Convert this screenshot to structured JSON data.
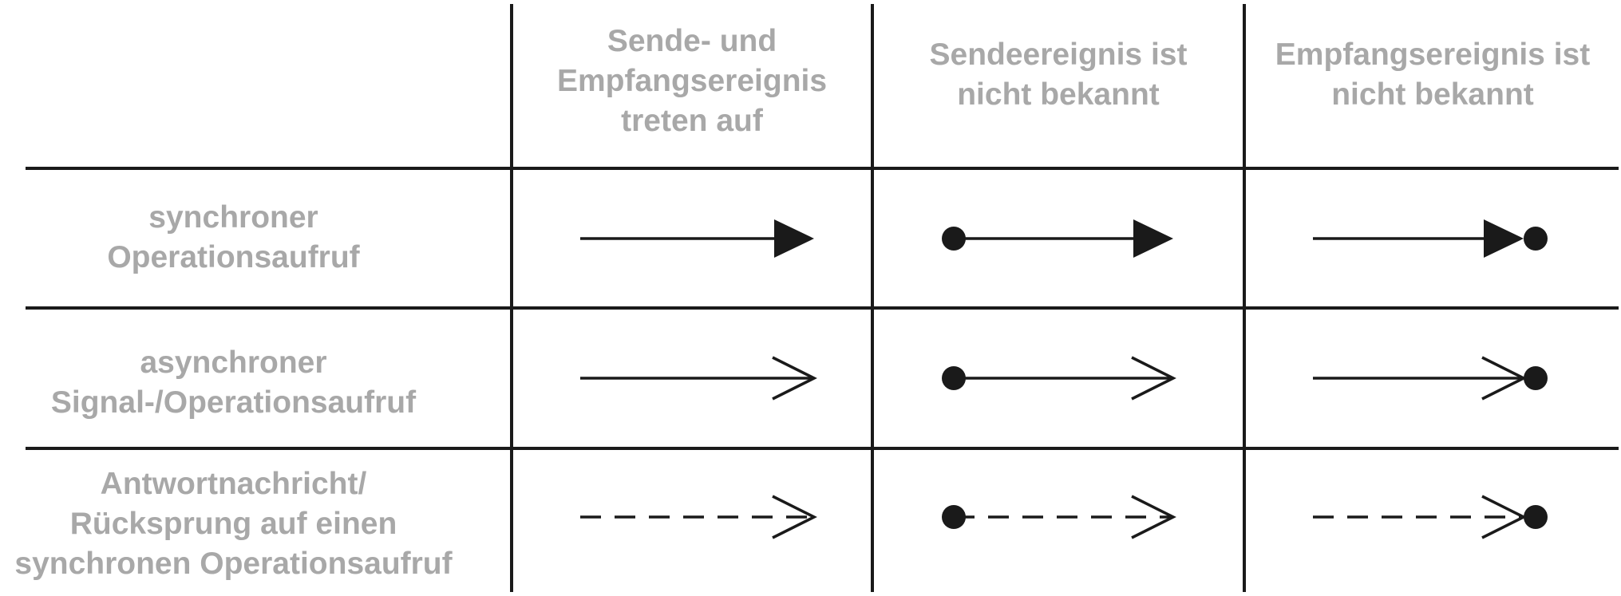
{
  "colors": {
    "text": "#a8a8a8",
    "line": "#1a1a1a",
    "background": "#ffffff"
  },
  "columns": [
    {
      "lines": [
        "Sende- und",
        "Empfangsereignis",
        "treten auf"
      ]
    },
    {
      "lines": [
        "Sendeereignis ist",
        "nicht bekannt"
      ]
    },
    {
      "lines": [
        "Empfangsereignis ist",
        "nicht bekannt"
      ]
    }
  ],
  "rows": [
    {
      "lines": [
        "synchroner",
        "Operationsaufruf"
      ],
      "arrow": {
        "line": "solid",
        "head": "filled-triangle"
      }
    },
    {
      "lines": [
        "asynchroner",
        "Signal-/Operationsaufruf"
      ],
      "arrow": {
        "line": "solid",
        "head": "open"
      }
    },
    {
      "lines": [
        "Antwortnachricht/",
        "Rücksprung auf einen",
        "synchronen Operationsaufruf"
      ],
      "arrow": {
        "line": "dashed",
        "head": "open"
      }
    }
  ],
  "cells": [
    [
      "no-dot",
      "dot-at-start",
      "dot-at-end"
    ],
    [
      "no-dot",
      "dot-at-start",
      "dot-at-end"
    ],
    [
      "no-dot",
      "dot-at-start",
      "dot-at-end"
    ]
  ]
}
